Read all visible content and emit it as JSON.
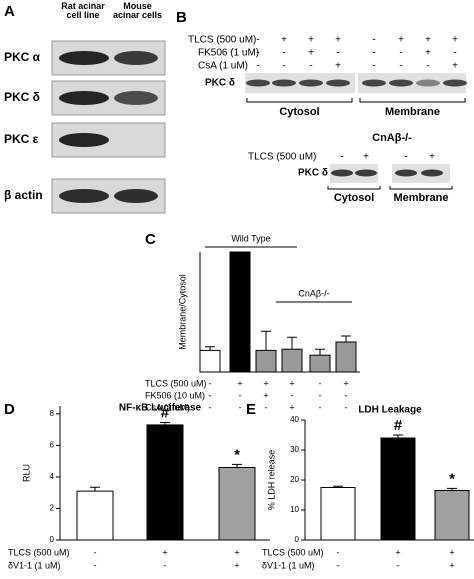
{
  "panel_a": {
    "label": "A",
    "columns": [
      "Rat acinar cell line",
      "Mouse acinar cells"
    ],
    "rows": [
      "PKC α",
      "PKC δ",
      "PKC ε",
      "β actin"
    ]
  },
  "panel_b": {
    "label": "B",
    "treatments": [
      {
        "label": "TLCS (500 uM)",
        "signs": [
          "-",
          "+",
          "+",
          "+",
          "-",
          "+",
          "+",
          "+"
        ]
      },
      {
        "label": "FK506 (1 uM)",
        "signs": [
          "-",
          "-",
          "+",
          "-",
          "-",
          "-",
          "+",
          "-"
        ]
      },
      {
        "label": "CsA (1 uM)",
        "signs": [
          "-",
          "-",
          "-",
          "+",
          "-",
          "-",
          "-",
          "+"
        ]
      }
    ],
    "band_label": "PKC δ",
    "fractions": [
      "Cytosol",
      "Membrane"
    ],
    "knockout": {
      "title": "CnAβ-/-",
      "treatments": [
        {
          "label": "TLCS (500 uM)",
          "signs": [
            "-",
            "+",
            "-",
            "+"
          ]
        }
      ],
      "band_label": "PKC δ",
      "fractions": [
        "Cytosol",
        "Membrane"
      ]
    }
  },
  "chart_data": [
    {
      "type": "bar",
      "panel": "C",
      "y_label": "Membrane/Cytosol",
      "categories": [
        null,
        null,
        null,
        null,
        null,
        null
      ],
      "values": [
        0.18,
        1.0,
        0.18,
        0.19,
        0.14,
        0.25
      ],
      "errors": [
        0.03,
        0,
        0.16,
        0.1,
        0.05,
        0.05
      ],
      "colors": [
        "#ffffff",
        "#000000",
        "#9a9a9a",
        "#9a9a9a",
        "#9a9a9a",
        "#9a9a9a"
      ],
      "ylim": [
        0,
        1
      ],
      "groups": [
        {
          "label": "Wild Type"
        },
        {
          "label": "CnAβ-/-"
        }
      ],
      "treatments": [
        {
          "label": "TLCS (500 uM)",
          "signs": [
            "-",
            "+",
            "+",
            "+",
            "-",
            "+"
          ]
        },
        {
          "label": "FK506 (10 uM)",
          "signs": [
            "-",
            "-",
            "+",
            "-",
            "-",
            "-"
          ]
        },
        {
          "label": "CsA (1 uM)",
          "signs": [
            "-",
            "-",
            "-",
            "+",
            "-",
            "-"
          ]
        }
      ]
    },
    {
      "type": "bar",
      "panel": "D",
      "title": "NF-κB Luciferase",
      "y_label": "RLU",
      "categories": [
        null,
        null,
        null
      ],
      "values": [
        3.1,
        7.3,
        4.6
      ],
      "errors": [
        0.25,
        0.15,
        0.2
      ],
      "colors": [
        "#ffffff",
        "#000000",
        "#a0a0a0"
      ],
      "ylim": [
        0,
        8.5
      ],
      "yticks": [
        0,
        2,
        4,
        6,
        8
      ],
      "annotations": [
        {
          "bar": 1,
          "text": "#"
        },
        {
          "bar": 2,
          "text": "*"
        }
      ],
      "treatments": [
        {
          "label": "TLCS (500 uM)",
          "signs": [
            "-",
            "+",
            "+"
          ]
        },
        {
          "label": "δV1-1 (1 uM)",
          "signs": [
            "-",
            "-",
            "+"
          ]
        }
      ]
    },
    {
      "type": "bar",
      "panel": "E",
      "title": "LDH Leakage",
      "y_label": "% LDH release",
      "categories": [
        null,
        null,
        null
      ],
      "values": [
        17.5,
        34,
        16.5
      ],
      "errors": [
        0.4,
        1,
        0.7
      ],
      "colors": [
        "#ffffff",
        "#000000",
        "#a0a0a0"
      ],
      "ylim": [
        0,
        40
      ],
      "yticks": [
        0,
        10,
        20,
        30,
        40
      ],
      "annotations": [
        {
          "bar": 1,
          "text": "#"
        },
        {
          "bar": 2,
          "text": "*"
        }
      ],
      "treatments": [
        {
          "label": "TLCS (500 uM)",
          "signs": [
            "-",
            "+",
            "+"
          ]
        },
        {
          "label": "δV1-1 (1 uM)",
          "signs": [
            "-",
            "-",
            "+"
          ]
        }
      ]
    }
  ]
}
